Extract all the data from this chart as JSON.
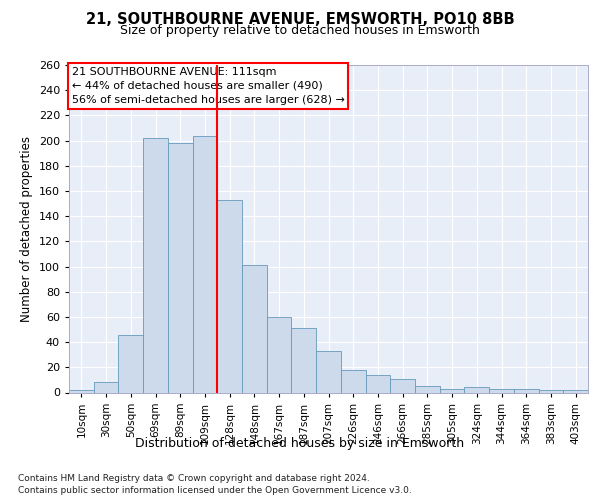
{
  "title1": "21, SOUTHBOURNE AVENUE, EMSWORTH, PO10 8BB",
  "title2": "Size of property relative to detached houses in Emsworth",
  "xlabel": "Distribution of detached houses by size in Emsworth",
  "ylabel": "Number of detached properties",
  "categories": [
    "10sqm",
    "30sqm",
    "50sqm",
    "69sqm",
    "89sqm",
    "109sqm",
    "128sqm",
    "148sqm",
    "167sqm",
    "187sqm",
    "207sqm",
    "226sqm",
    "246sqm",
    "266sqm",
    "285sqm",
    "305sqm",
    "324sqm",
    "344sqm",
    "364sqm",
    "383sqm",
    "403sqm"
  ],
  "values": [
    2,
    8,
    46,
    202,
    198,
    204,
    153,
    101,
    60,
    51,
    33,
    18,
    14,
    11,
    5,
    3,
    4,
    3,
    3,
    2,
    2
  ],
  "bar_color": "#ccdaeb",
  "bar_edge_color": "#6699bb",
  "vline_color": "red",
  "annotation_title": "21 SOUTHBOURNE AVENUE: 111sqm",
  "annotation_line1": "← 44% of detached houses are smaller (490)",
  "annotation_line2": "56% of semi-detached houses are larger (628) →",
  "annotation_box_color": "white",
  "annotation_box_edge": "red",
  "footnote1": "Contains HM Land Registry data © Crown copyright and database right 2024.",
  "footnote2": "Contains public sector information licensed under the Open Government Licence v3.0.",
  "ylim": [
    0,
    260
  ],
  "yticks": [
    0,
    20,
    40,
    60,
    80,
    100,
    120,
    140,
    160,
    180,
    200,
    220,
    240,
    260
  ],
  "plot_bg_color": "#e8eef8"
}
